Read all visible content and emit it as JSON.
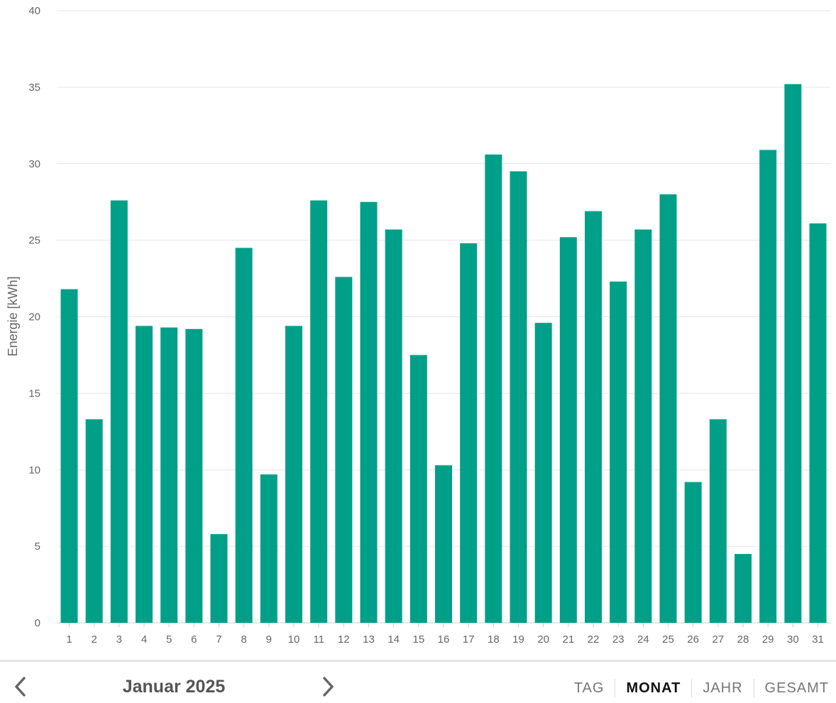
{
  "chart_data": {
    "type": "bar",
    "ylabel": "Energie [kWh]",
    "ylim": [
      0,
      40
    ],
    "yticks": [
      0,
      5,
      10,
      15,
      20,
      25,
      30,
      35,
      40
    ],
    "grid": true,
    "bar_color": "#00a088",
    "categories": [
      "1",
      "2",
      "3",
      "4",
      "5",
      "6",
      "7",
      "8",
      "9",
      "10",
      "11",
      "12",
      "13",
      "14",
      "15",
      "16",
      "17",
      "18",
      "19",
      "20",
      "21",
      "22",
      "23",
      "24",
      "25",
      "26",
      "27",
      "28",
      "29",
      "30",
      "31"
    ],
    "values": [
      21.8,
      13.3,
      27.6,
      19.4,
      19.3,
      19.2,
      5.8,
      24.5,
      9.7,
      19.4,
      27.6,
      22.6,
      27.5,
      25.7,
      17.5,
      10.3,
      24.8,
      30.6,
      29.5,
      19.6,
      25.2,
      26.9,
      22.3,
      25.7,
      28.0,
      9.2,
      13.3,
      4.5,
      30.9,
      35.2,
      26.1
    ]
  },
  "footer": {
    "period_label": "Januar 2025",
    "prev_icon": "chevron-left-icon",
    "next_icon": "chevron-right-icon",
    "tabs": [
      {
        "label": "TAG",
        "active": false
      },
      {
        "label": "MONAT",
        "active": true
      },
      {
        "label": "JAHR",
        "active": false
      },
      {
        "label": "GESAMT",
        "active": false
      }
    ]
  }
}
